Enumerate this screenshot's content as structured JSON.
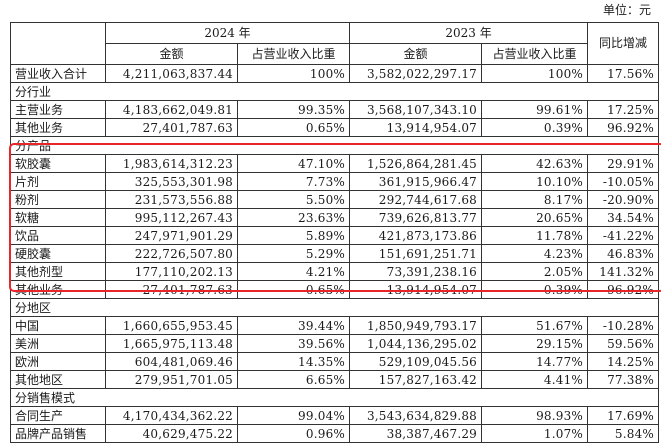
{
  "unit_label": "单位：元",
  "header": {
    "year_a": "2024 年",
    "year_b": "2023 年",
    "yoy": "同比增减",
    "amount": "金额",
    "ratio": "占营业收入比重"
  },
  "rows": [
    {
      "type": "data",
      "label": "营业收入合计",
      "a_amount": "4,211,063,837.44",
      "a_ratio": "100%",
      "b_amount": "3,582,022,297.17",
      "b_ratio": "100%",
      "yoy": "17.56%"
    },
    {
      "type": "section",
      "label": "分行业"
    },
    {
      "type": "data",
      "label": "主营业务",
      "a_amount": "4,183,662,049.81",
      "a_ratio": "99.35%",
      "b_amount": "3,568,107,343.10",
      "b_ratio": "99.61%",
      "yoy": "17.25%"
    },
    {
      "type": "data",
      "label": "其他业务",
      "a_amount": "27,401,787.63",
      "a_ratio": "0.65%",
      "b_amount": "13,914,954.07",
      "b_ratio": "0.39%",
      "yoy": "96.92%"
    },
    {
      "type": "section",
      "label": "分产品"
    },
    {
      "type": "data",
      "label": "软胶囊",
      "a_amount": "1,983,614,312.23",
      "a_ratio": "47.10%",
      "b_amount": "1,526,864,281.45",
      "b_ratio": "42.63%",
      "yoy": "29.91%"
    },
    {
      "type": "data",
      "label": "片剂",
      "a_amount": "325,553,301.98",
      "a_ratio": "7.73%",
      "b_amount": "361,915,966.47",
      "b_ratio": "10.10%",
      "yoy": "-10.05%"
    },
    {
      "type": "data",
      "label": "粉剂",
      "a_amount": "231,573,556.88",
      "a_ratio": "5.50%",
      "b_amount": "292,744,617.68",
      "b_ratio": "8.17%",
      "yoy": "-20.90%"
    },
    {
      "type": "data",
      "label": "软糖",
      "a_amount": "995,112,267.43",
      "a_ratio": "23.63%",
      "b_amount": "739,626,813.77",
      "b_ratio": "20.65%",
      "yoy": "34.54%"
    },
    {
      "type": "data",
      "label": "饮品",
      "a_amount": "247,971,901.29",
      "a_ratio": "5.89%",
      "b_amount": "421,873,173.86",
      "b_ratio": "11.78%",
      "yoy": "-41.22%"
    },
    {
      "type": "data",
      "label": "硬胶囊",
      "a_amount": "222,726,507.80",
      "a_ratio": "5.29%",
      "b_amount": "151,691,251.71",
      "b_ratio": "4.23%",
      "yoy": "46.83%"
    },
    {
      "type": "data",
      "label": "其他剂型",
      "a_amount": "177,110,202.13",
      "a_ratio": "4.21%",
      "b_amount": "73,391,238.16",
      "b_ratio": "2.05%",
      "yoy": "141.32%"
    },
    {
      "type": "data",
      "label": "其他业务",
      "a_amount": "27,401,787.63",
      "a_ratio": "0.65%",
      "b_amount": "13,914,954.07",
      "b_ratio": "0.39%",
      "yoy": "96.92%"
    },
    {
      "type": "section",
      "label": "分地区"
    },
    {
      "type": "data",
      "label": "中国",
      "a_amount": "1,660,655,953.45",
      "a_ratio": "39.44%",
      "b_amount": "1,850,949,793.17",
      "b_ratio": "51.67%",
      "yoy": "-10.28%"
    },
    {
      "type": "data",
      "label": "美洲",
      "a_amount": "1,665,975,113.48",
      "a_ratio": "39.56%",
      "b_amount": "1,044,136,295.02",
      "b_ratio": "29.15%",
      "yoy": "59.56%"
    },
    {
      "type": "data",
      "label": "欧洲",
      "a_amount": "604,481,069.46",
      "a_ratio": "14.35%",
      "b_amount": "529,109,045.56",
      "b_ratio": "14.77%",
      "yoy": "14.25%"
    },
    {
      "type": "data",
      "label": "其他地区",
      "a_amount": "279,951,701.05",
      "a_ratio": "6.65%",
      "b_amount": "157,827,163.42",
      "b_ratio": "4.41%",
      "yoy": "77.38%"
    },
    {
      "type": "section",
      "label": "分销售模式"
    },
    {
      "type": "data",
      "label": "合同生产",
      "a_amount": "4,170,434,362.22",
      "a_ratio": "99.04%",
      "b_amount": "3,543,634,829.88",
      "b_ratio": "98.93%",
      "yoy": "17.69%"
    },
    {
      "type": "data",
      "label": "品牌产品销售",
      "a_amount": "40,629,475.22",
      "a_ratio": "0.96%",
      "b_amount": "38,387,467.29",
      "b_ratio": "1.07%",
      "yoy": "5.84%"
    }
  ],
  "highlight_color": "#e8262a"
}
